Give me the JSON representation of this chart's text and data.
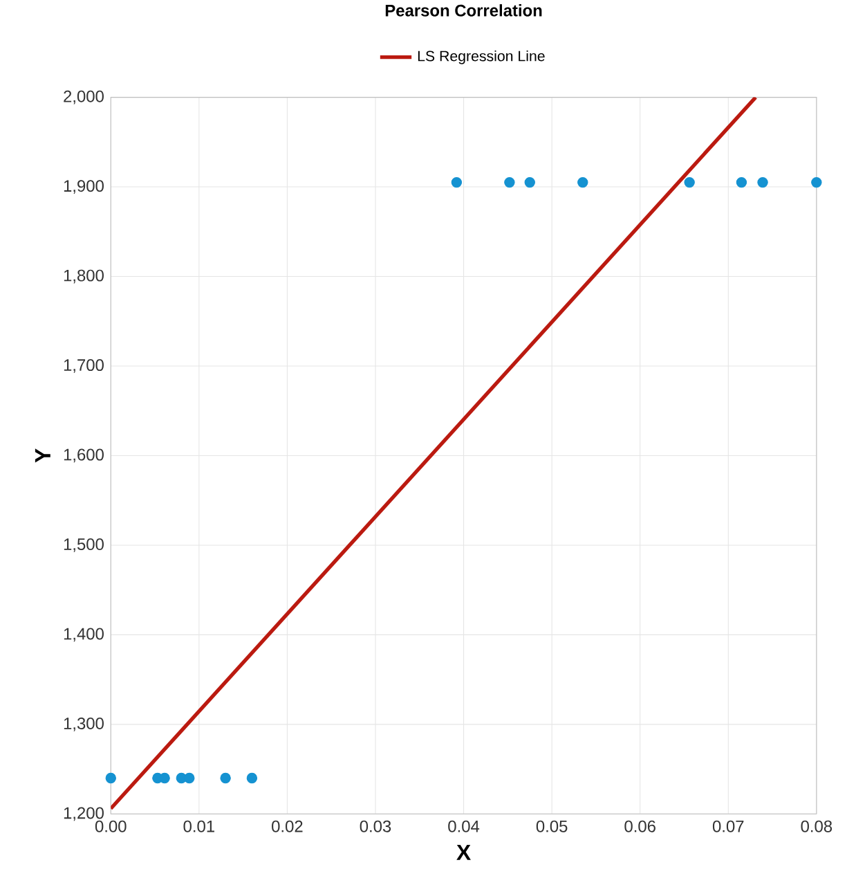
{
  "chart_data": {
    "type": "scatter",
    "title": "Pearson Correlation",
    "xlabel": "X",
    "ylabel": "Y",
    "series": [
      {
        "color": "#1592d1",
        "x": [
          0.0,
          0.0053,
          0.0061,
          0.008,
          0.0089,
          0.013,
          0.016,
          0.0392,
          0.0452,
          0.0475,
          0.0535,
          0.0656,
          0.0715,
          0.0739,
          0.08
        ],
        "values": [
          1240,
          1240,
          1240,
          1240,
          1240,
          1240,
          1240,
          1905,
          1905,
          1905,
          1905,
          1905,
          1905,
          1905,
          1905
        ]
      },
      {
        "type": "line",
        "name": "LS Regression Line",
        "marker": "none",
        "color": "#bb1a10",
        "x": [
          0.0,
          0.0731
        ],
        "values": [
          1206,
          2000
        ]
      }
    ],
    "xlim": [
      0,
      0.08
    ],
    "ylim": [
      1200,
      2000
    ],
    "xticks": [
      {
        "value": 0,
        "label": "0.00"
      },
      {
        "value": 0.01,
        "label": "0.01"
      },
      {
        "value": 0.02,
        "label": "0.02"
      },
      {
        "value": 0.03,
        "label": "0.03"
      },
      {
        "value": 0.04,
        "label": "0.04"
      },
      {
        "value": 0.05,
        "label": "0.05"
      },
      {
        "value": 0.06,
        "label": "0.06"
      },
      {
        "value": 0.07,
        "label": "0.07"
      },
      {
        "value": 0.08,
        "label": "0.08"
      }
    ],
    "yticks": [
      {
        "value": 1200,
        "label": "1,200"
      },
      {
        "value": 1300,
        "label": "1,300"
      },
      {
        "value": 1400,
        "label": "1,400"
      },
      {
        "value": 1500,
        "label": "1,500"
      },
      {
        "value": 1600,
        "label": "1,600"
      },
      {
        "value": 1700,
        "label": "1,700"
      },
      {
        "value": 1800,
        "label": "1,800"
      },
      {
        "value": 1900,
        "label": "1,900"
      },
      {
        "value": 2000,
        "label": "2,000"
      }
    ],
    "grid": true,
    "legend": "top",
    "marker": "circle"
  }
}
